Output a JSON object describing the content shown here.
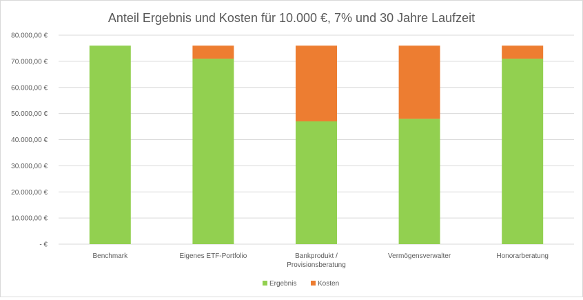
{
  "chart_data": {
    "type": "bar",
    "stacked": true,
    "title": "Anteil Ergebnis und Kosten für 10.000 €, 7% und 30 Jahre Laufzeit",
    "categories": [
      [
        "Benchmark"
      ],
      [
        "Eigenes ETF-Portfolio"
      ],
      [
        "Bankprodukt /",
        "Provisionsberatung"
      ],
      [
        "Vermögensverwalter"
      ],
      [
        "Honorarberatung"
      ]
    ],
    "series": [
      {
        "name": "Ergebnis",
        "color": "#92d050",
        "values": [
          76000,
          71000,
          47000,
          48000,
          71000
        ]
      },
      {
        "name": "Kosten",
        "color": "#ed7d31",
        "values": [
          0,
          5000,
          29000,
          28000,
          5000
        ]
      }
    ],
    "ylim": [
      0,
      80000
    ],
    "yticks": [
      0,
      10000,
      20000,
      30000,
      40000,
      50000,
      60000,
      70000,
      80000
    ],
    "ytick_labels": [
      "-  €",
      "10.000,00 €",
      "20.000,00 €",
      "30.000,00 €",
      "40.000,00 €",
      "50.000,00 €",
      "60.000,00 €",
      "70.000,00 €",
      "80.000,00 €"
    ],
    "grid": true,
    "legend": "bottom",
    "xlabel": "",
    "ylabel": ""
  }
}
